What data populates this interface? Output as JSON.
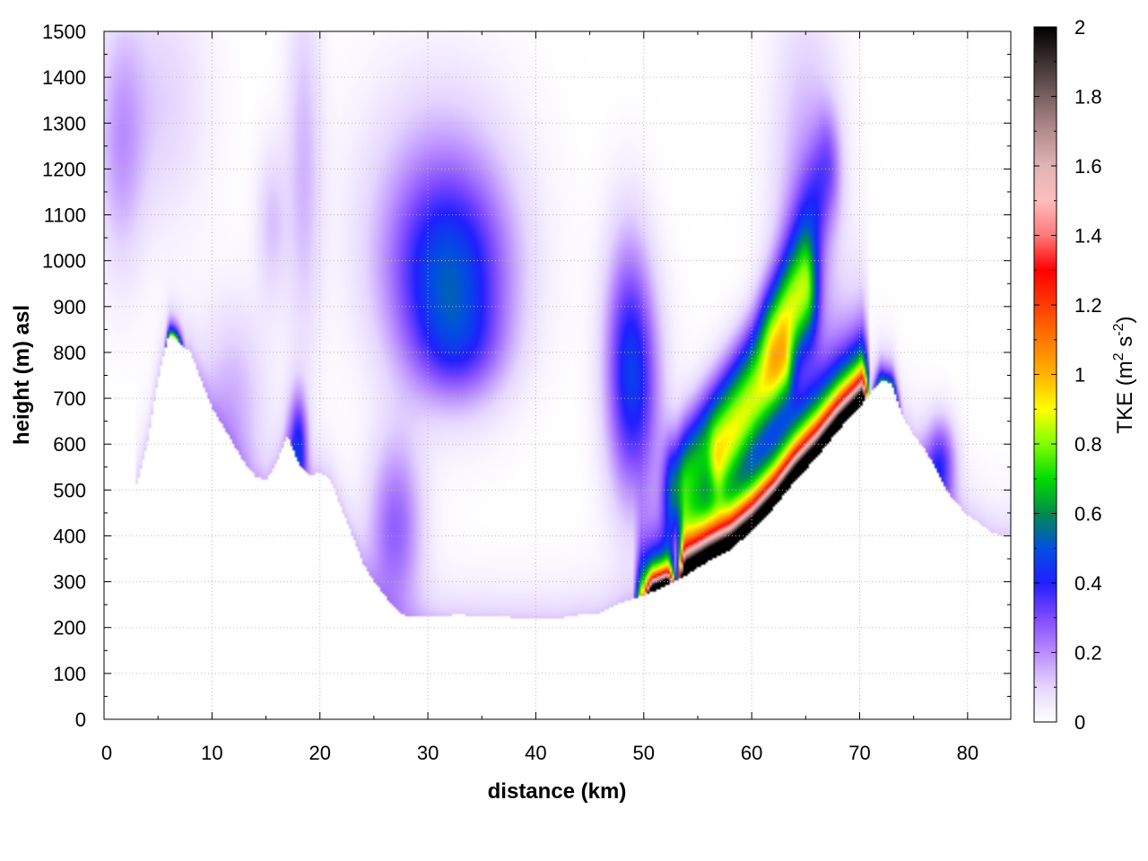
{
  "chart_data": {
    "type": "heatmap",
    "title": "",
    "xlabel": "distance (km)",
    "ylabel": "height (m) asl",
    "colorbar_label_base": "TKE (m",
    "colorbar_label_sup1": "2",
    "colorbar_label_mid": " s",
    "colorbar_label_sup2": "-2",
    "colorbar_label_end": ")",
    "xlim": [
      0,
      84
    ],
    "ylim": [
      0,
      1500
    ],
    "zlim": [
      0,
      2
    ],
    "x_ticks": [
      0,
      10,
      20,
      30,
      40,
      50,
      60,
      70,
      80
    ],
    "x_tick_labels": [
      "0",
      "10",
      "20",
      "30",
      "40",
      "50",
      "60",
      "70",
      "80"
    ],
    "y_ticks": [
      0,
      100,
      200,
      300,
      400,
      500,
      600,
      700,
      800,
      900,
      1000,
      1100,
      1200,
      1300,
      1400,
      1500
    ],
    "y_tick_labels": [
      "0",
      "100",
      "200",
      "300",
      "400",
      "500",
      "600",
      "700",
      "800",
      "900",
      "1000",
      "1100",
      "1200",
      "1300",
      "1400",
      "1500"
    ],
    "z_ticks": [
      0,
      0.2,
      0.4,
      0.6,
      0.8,
      1,
      1.2,
      1.4,
      1.6,
      1.8,
      2
    ],
    "z_tick_labels": [
      "0",
      "0.2",
      "0.4",
      "0.6",
      "0.8",
      "1",
      "1.2",
      "1.4",
      "1.6",
      "1.8",
      "2"
    ],
    "grid": true,
    "colormap": [
      {
        "v": 0.0,
        "color": "#ffffff"
      },
      {
        "v": 0.1,
        "color": "#e6d6ff"
      },
      {
        "v": 0.2,
        "color": "#b98cff"
      },
      {
        "v": 0.3,
        "color": "#7f4aff"
      },
      {
        "v": 0.4,
        "color": "#2020ff"
      },
      {
        "v": 0.5,
        "color": "#0050e0"
      },
      {
        "v": 0.6,
        "color": "#008c4c"
      },
      {
        "v": 0.7,
        "color": "#00dc00"
      },
      {
        "v": 0.8,
        "color": "#80ff00"
      },
      {
        "v": 0.9,
        "color": "#ffff00"
      },
      {
        "v": 1.0,
        "color": "#ffb400"
      },
      {
        "v": 1.1,
        "color": "#ff7800"
      },
      {
        "v": 1.2,
        "color": "#ff3c00"
      },
      {
        "v": 1.3,
        "color": "#ff0000"
      },
      {
        "v": 1.4,
        "color": "#ff7878"
      },
      {
        "v": 1.5,
        "color": "#ffbcbc"
      },
      {
        "v": 1.6,
        "color": "#e0b4b4"
      },
      {
        "v": 1.7,
        "color": "#b48c8c"
      },
      {
        "v": 1.8,
        "color": "#786060"
      },
      {
        "v": 1.9,
        "color": "#3c3030"
      },
      {
        "v": 2.0,
        "color": "#000000"
      }
    ],
    "terrain": [
      [
        3,
        510
      ],
      [
        4,
        600
      ],
      [
        5,
        740
      ],
      [
        6,
        840
      ],
      [
        7,
        820
      ],
      [
        8,
        800
      ],
      [
        9,
        740
      ],
      [
        10,
        680
      ],
      [
        11,
        640
      ],
      [
        12,
        600
      ],
      [
        13,
        560
      ],
      [
        14,
        530
      ],
      [
        15,
        520
      ],
      [
        16,
        560
      ],
      [
        17,
        620
      ],
      [
        18,
        560
      ],
      [
        19,
        530
      ],
      [
        20,
        540
      ],
      [
        21,
        520
      ],
      [
        22,
        460
      ],
      [
        23,
        400
      ],
      [
        24,
        340
      ],
      [
        25,
        300
      ],
      [
        26,
        270
      ],
      [
        27,
        240
      ],
      [
        28,
        225
      ],
      [
        30,
        225
      ],
      [
        33,
        228
      ],
      [
        35,
        225
      ],
      [
        38,
        222
      ],
      [
        41,
        222
      ],
      [
        42,
        220
      ],
      [
        44,
        228
      ],
      [
        46,
        232
      ],
      [
        48,
        255
      ],
      [
        50,
        270
      ],
      [
        52,
        290
      ],
      [
        54,
        315
      ],
      [
        56,
        345
      ],
      [
        58,
        370
      ],
      [
        60,
        410
      ],
      [
        62,
        460
      ],
      [
        64,
        520
      ],
      [
        66,
        570
      ],
      [
        68,
        630
      ],
      [
        70,
        680
      ],
      [
        72,
        740
      ],
      [
        73,
        730
      ],
      [
        74,
        660
      ],
      [
        75,
        620
      ],
      [
        76,
        590
      ],
      [
        77,
        550
      ],
      [
        78,
        500
      ],
      [
        79,
        470
      ],
      [
        80,
        445
      ],
      [
        81,
        430
      ],
      [
        82,
        410
      ],
      [
        83,
        400
      ],
      [
        84,
        400
      ]
    ],
    "features": [
      {
        "cx": 1.5,
        "cy": 1250,
        "sx": 1.6,
        "sy": 200,
        "a": 0.16
      },
      {
        "cx": 18.5,
        "cy": 1200,
        "sx": 1.2,
        "sy": 300,
        "a": 0.14
      },
      {
        "cx": 15.5,
        "cy": 1080,
        "sx": 1.0,
        "sy": 120,
        "a": 0.12
      },
      {
        "cx": 32,
        "cy": 950,
        "sx": 4.0,
        "sy": 160,
        "a": 0.42
      },
      {
        "cx": 31,
        "cy": 1150,
        "sx": 5.0,
        "sy": 200,
        "a": 0.14
      },
      {
        "cx": 33,
        "cy": 800,
        "sx": 3.0,
        "sy": 80,
        "a": 0.14
      },
      {
        "cx": 48.5,
        "cy": 800,
        "sx": 1.6,
        "sy": 200,
        "a": 0.28
      },
      {
        "cx": 49.5,
        "cy": 700,
        "sx": 1.8,
        "sy": 180,
        "a": 0.22
      },
      {
        "cx": 27,
        "cy": 420,
        "sx": 1.8,
        "sy": 140,
        "a": 0.26
      },
      {
        "cx": 12,
        "cy": 700,
        "sx": 2.2,
        "sy": 150,
        "a": 0.14
      },
      {
        "cx": 18,
        "cy": 600,
        "sx": 0.6,
        "sy": 80,
        "a": 0.36
      },
      {
        "cx": 5.5,
        "cy": 1350,
        "sx": 3.0,
        "sy": 200,
        "a": 0.1
      },
      {
        "cx": 65,
        "cy": 1100,
        "sx": 2.2,
        "sy": 320,
        "a": 0.18
      },
      {
        "cx": 77.5,
        "cy": 560,
        "sx": 1.0,
        "sy": 70,
        "a": 0.32
      }
    ],
    "streaks": [
      {
        "x0": 53,
        "y0": 500,
        "x1": 65,
        "y1": 930,
        "w": 1.6,
        "a": 0.55
      },
      {
        "x0": 57,
        "y0": 560,
        "x1": 63,
        "y1": 760,
        "w": 1.2,
        "a": 0.4
      },
      {
        "x0": 62,
        "y0": 850,
        "x1": 67,
        "y1": 1200,
        "w": 1.8,
        "a": 0.22
      }
    ],
    "surface_ridges": [
      {
        "x0": 50,
        "x1": 53,
        "depth": 25,
        "a": 2.0
      },
      {
        "x0": 53,
        "x1": 71,
        "depth": 55,
        "a": 2.0
      },
      {
        "x0": 53,
        "x1": 71,
        "depth": 100,
        "a": 1.0
      },
      {
        "x0": 5.5,
        "x1": 7.5,
        "depth": 20,
        "a": 0.85
      },
      {
        "x0": 71,
        "x1": 74,
        "depth": 30,
        "a": 0.5
      },
      {
        "x0": 49,
        "x1": 53,
        "depth": 80,
        "a": 0.9
      }
    ]
  }
}
